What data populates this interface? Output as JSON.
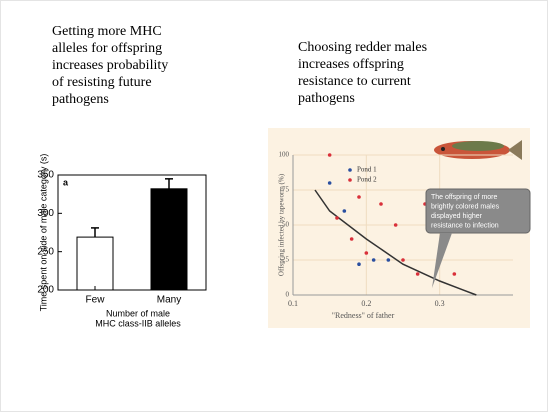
{
  "captions": {
    "left": [
      "Getting more MHC",
      "alleles for offspring",
      "increases probability",
      "of resisting future",
      "pathogens"
    ],
    "right": [
      "Choosing redder males",
      "increases offspring",
      "resistance to current",
      "pathogens"
    ]
  },
  "chart_data": [
    {
      "type": "bar",
      "panel_label": "a",
      "categories": [
        "Few",
        "Many"
      ],
      "values": [
        269,
        332
      ],
      "errors": [
        12,
        13
      ],
      "colors": [
        "#ffffff",
        "#000000"
      ],
      "ylim": [
        200,
        350
      ],
      "yticks": [
        200,
        250,
        300,
        350
      ],
      "ylabel": "Time spent on side of male category (s)",
      "xlabel": [
        "Number of male",
        "MHC class-IIB alleles"
      ]
    },
    {
      "type": "scatter",
      "xlabel": "\"Redness\" of father",
      "ylabel": "Offspring infected by tapeworm (%)",
      "xlim": [
        0.1,
        0.4
      ],
      "xticks": [
        0.1,
        0.2,
        0.3
      ],
      "ylim": [
        0,
        100
      ],
      "yticks": [
        0,
        25,
        50,
        75,
        100
      ],
      "grid": true,
      "series": [
        {
          "name": "Pond 1",
          "color": "#2a4fa0",
          "x": [
            0.15,
            0.17,
            0.19,
            0.21,
            0.23
          ],
          "values": [
            80,
            60,
            22,
            25,
            25
          ]
        },
        {
          "name": "Pond 2",
          "color": "#d9303a",
          "x": [
            0.15,
            0.16,
            0.18,
            0.19,
            0.2,
            0.22,
            0.24,
            0.25,
            0.27,
            0.28,
            0.32
          ],
          "values": [
            100,
            55,
            40,
            70,
            30,
            65,
            50,
            25,
            15,
            65,
            15
          ]
        }
      ],
      "curve": {
        "x": [
          0.13,
          0.15,
          0.2,
          0.25,
          0.3,
          0.33,
          0.35
        ],
        "values": [
          75,
          60,
          40,
          22,
          10,
          4,
          0
        ]
      },
      "annotation": [
        "The offspring of more",
        "brightly colored males",
        "displayed higher",
        "resistance to infection"
      ]
    }
  ]
}
